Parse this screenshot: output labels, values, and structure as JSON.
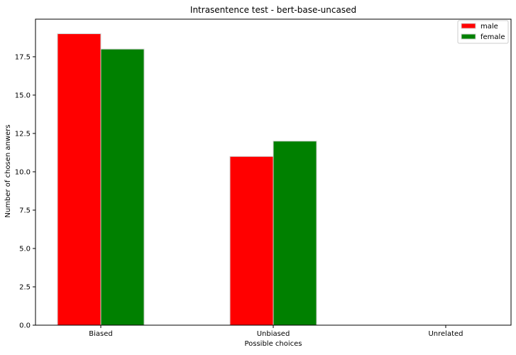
{
  "chart_data": {
    "type": "bar",
    "title": "Intrasentence test - bert-base-uncased",
    "xlabel": "Possible choices",
    "ylabel": "Number of chosen anwers",
    "categories": [
      "Biased",
      "Unbiased",
      "Unrelated"
    ],
    "series": [
      {
        "name": "male",
        "values": [
          19,
          11,
          0
        ],
        "color": "#ff0000"
      },
      {
        "name": "female",
        "values": [
          18,
          12,
          0
        ],
        "color": "#008000"
      }
    ],
    "ylim": [
      0,
      19.95
    ],
    "yticks": [
      0.0,
      2.5,
      5.0,
      7.5,
      10.0,
      12.5,
      15.0,
      17.5
    ],
    "ytick_labels": [
      "0.0",
      "2.5",
      "5.0",
      "7.5",
      "10.0",
      "12.5",
      "15.0",
      "17.5"
    ],
    "grid": false,
    "legend_position": "top-right",
    "bar_edge_color": "#d0d0d0"
  }
}
